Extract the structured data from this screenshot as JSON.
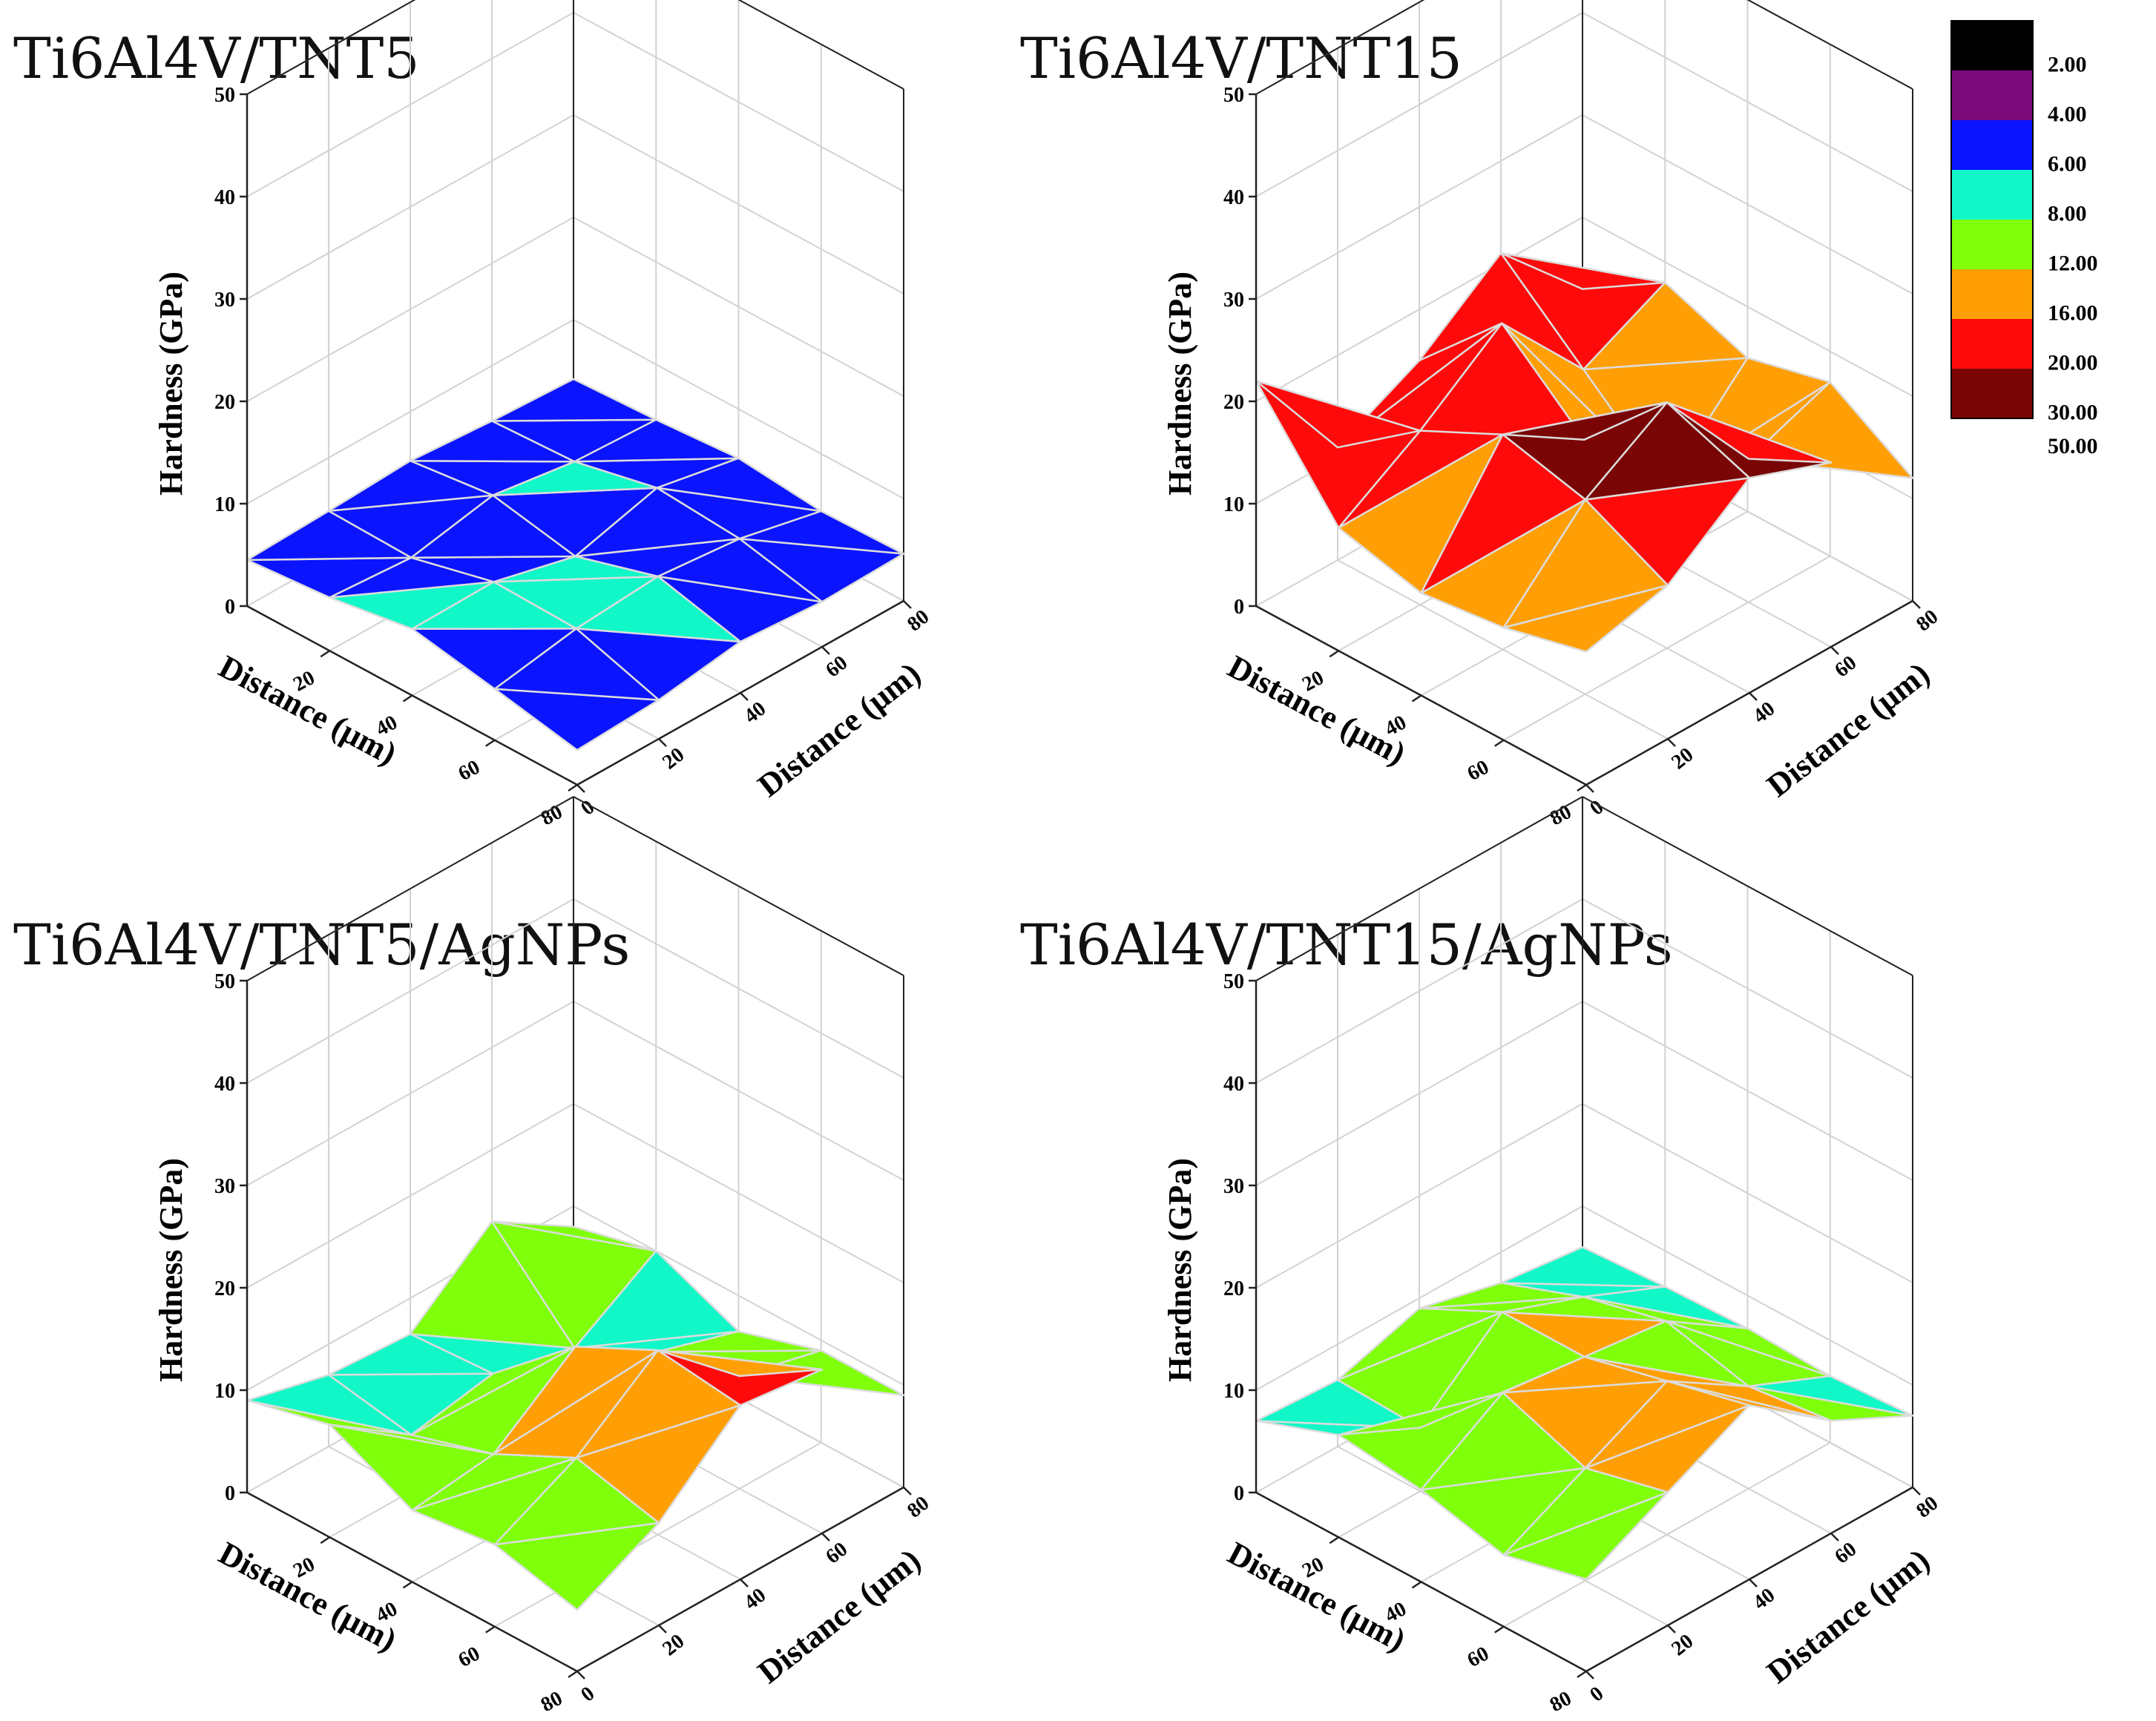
{
  "colors": {
    "bands": [
      "#000000",
      "#7a0a7a",
      "#0a14ff",
      "#12f7c8",
      "#7fff0a",
      "#ff9f05",
      "#ff0a0a",
      "#7a0505"
    ],
    "grid": "#d2d2d2",
    "mesh": "#dcdcdc",
    "axis": "#222222"
  },
  "legend": {
    "labels": [
      "2.00",
      "4.00",
      "6.00",
      "8.00",
      "12.00",
      "16.00",
      "20.00",
      "30.00",
      "50.00"
    ],
    "thresholds": [
      2,
      4,
      6,
      8,
      12,
      16,
      20,
      30,
      50
    ]
  },
  "chart_data": [
    {
      "type": "surface3d",
      "title": "Ti6Al4V/TNT5",
      "zlabel": "Hardness (GPa)",
      "xlabel": "Distance (μm)",
      "ylabel": "Distance (μm)",
      "zlim": [
        0,
        50
      ],
      "ztick_labels": [
        "0",
        "10",
        "20",
        "30",
        "40",
        "50"
      ],
      "xtick_labels": [
        "20",
        "40",
        "60",
        "80"
      ],
      "ytick_labels": [
        "0",
        "20",
        "40",
        "60",
        "80"
      ],
      "x": [
        0,
        20,
        40,
        60,
        80
      ],
      "y": [
        0,
        20,
        40,
        60,
        80
      ],
      "z": [
        [
          4.5,
          4.8,
          5.2,
          4.6,
          4.2
        ],
        [
          5.2,
          4.6,
          6.2,
          5.0,
          4.6
        ],
        [
          6.5,
          6.6,
          4.6,
          6.8,
          5.2
        ],
        [
          5.0,
          6.4,
          7.0,
          6.2,
          4.4
        ],
        [
          3.4,
          3.8,
          5.0,
          4.4,
          4.6
        ]
      ]
    },
    {
      "type": "surface3d",
      "title": "Ti6Al4V/TNT15",
      "zlabel": "Hardness (GPa)",
      "xlabel": "Distance (μm)",
      "ylabel": "Distance (μm)",
      "zlim": [
        0,
        50
      ],
      "ztick_labels": [
        "0",
        "10",
        "20",
        "30",
        "40",
        "50"
      ],
      "xtick_labels": [
        "20",
        "40",
        "60",
        "80"
      ],
      "ytick_labels": [
        "0",
        "20",
        "40",
        "60",
        "80"
      ],
      "x": [
        0,
        20,
        40,
        60,
        80
      ],
      "y": [
        0,
        20,
        40,
        60,
        80
      ],
      "z": [
        [
          22,
          11,
          15,
          21,
          13
        ],
        [
          12,
          17,
          23,
          14,
          18
        ],
        [
          10,
          21,
          16,
          7,
          15
        ],
        [
          11,
          19,
          24,
          14,
          17
        ],
        [
          13,
          15,
          21,
          18,
          12
        ]
      ]
    },
    {
      "type": "surface3d",
      "title": "Ti6Al4V/TNT5/AgNPs",
      "zlabel": "Hardness (GPa)",
      "xlabel": "Distance (μm)",
      "ylabel": "Distance (μm)",
      "zlim": [
        0,
        50
      ],
      "ztick_labels": [
        "0",
        "10",
        "20",
        "30",
        "40",
        "50"
      ],
      "xtick_labels": [
        "20",
        "40",
        "60",
        "80"
      ],
      "ytick_labels": [
        "0",
        "20",
        "40",
        "60",
        "80"
      ],
      "x": [
        0,
        20,
        40,
        60,
        80
      ],
      "y": [
        0,
        20,
        40,
        60,
        80
      ],
      "z": [
        [
          9,
          7,
          6.5,
          13,
          8
        ],
        [
          11,
          5.5,
          7,
          5,
          10
        ],
        [
          7,
          8,
          14,
          9,
          6.5
        ],
        [
          8,
          12,
          18,
          11,
          9
        ],
        [
          6,
          10,
          17,
          16,
          9
        ]
      ]
    },
    {
      "type": "surface3d",
      "title": "Ti6Al4V/TNT15/AgNPs",
      "zlabel": "Hardness (GPa)",
      "xlabel": "Distance (μm)",
      "ylabel": "Distance (μm)",
      "zlim": [
        0,
        50
      ],
      "ztick_labels": [
        "0",
        "10",
        "20",
        "30",
        "40",
        "50"
      ],
      "xtick_labels": [
        "20",
        "40",
        "60",
        "80"
      ],
      "ytick_labels": [
        "0",
        "20",
        "40",
        "60",
        "80"
      ],
      "x": [
        0,
        20,
        40,
        60,
        80
      ],
      "y": [
        0,
        20,
        40,
        60,
        80
      ],
      "z": [
        [
          7,
          6.5,
          9,
          7,
          6
        ],
        [
          10,
          6.2,
          13,
          10,
          6.5
        ],
        [
          9,
          14,
          13,
          12,
          6.8
        ],
        [
          7,
          11,
          15,
          10,
          6.5
        ],
        [
          9,
          13,
          17,
          11,
          7
        ]
      ]
    }
  ]
}
